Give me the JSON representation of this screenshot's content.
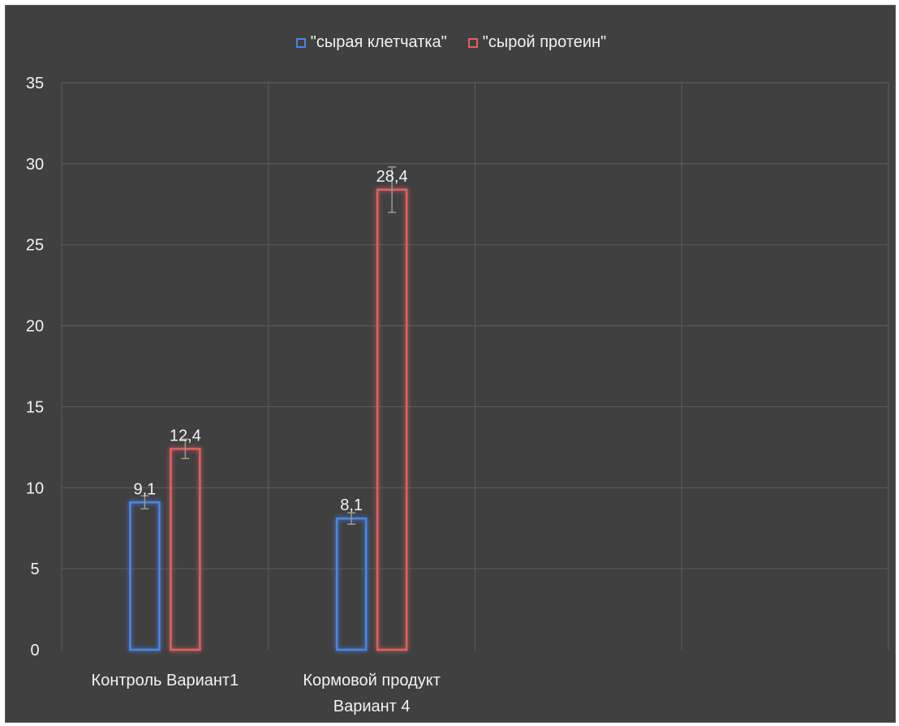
{
  "chart_data": {
    "type": "bar",
    "categories": [
      "Контроль Вариант1",
      "Кормовой продукт Вариант 4",
      "",
      ""
    ],
    "series": [
      {
        "name": "\"сырая клетчатка\"",
        "color": "#4a86e8",
        "values": [
          9.1,
          8.1,
          null,
          null
        ],
        "errors": [
          0.4,
          0.35,
          null,
          null
        ],
        "labels": [
          "9,1",
          "8,1",
          "",
          ""
        ]
      },
      {
        "name": "\"сырой протеин\"",
        "color": "#e06060",
        "values": [
          12.4,
          28.4,
          null,
          null
        ],
        "errors": [
          0.6,
          1.4,
          null,
          null
        ],
        "labels": [
          "12,4",
          "28,4",
          "",
          ""
        ]
      }
    ],
    "ylim": [
      0,
      35
    ],
    "yticks": [
      "0",
      "5",
      "10",
      "15",
      "20",
      "25",
      "30",
      "35"
    ],
    "grid": true,
    "legend_position": "top",
    "background": "#404040",
    "grid_color": "#5e5e5e",
    "text_color": "#f2f2f2"
  }
}
